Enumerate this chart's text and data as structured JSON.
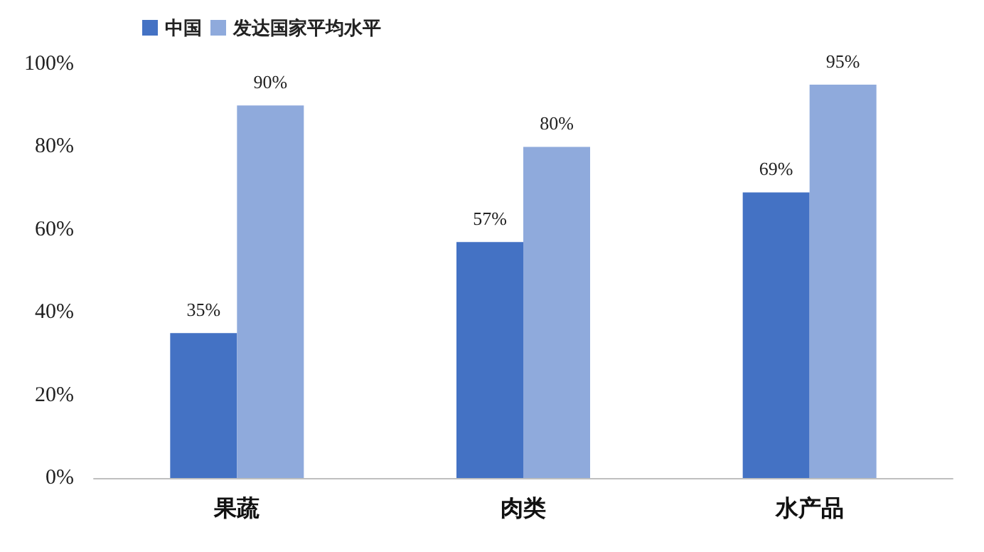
{
  "chart_data": {
    "type": "bar",
    "categories": [
      "果蔬",
      "肉类",
      "水产品"
    ],
    "series": [
      {
        "name": "中国",
        "color": "#4472c4",
        "values": [
          35,
          57,
          69
        ],
        "value_labels": [
          "35%",
          "57%",
          "69%"
        ]
      },
      {
        "name": "发达国家平均水平",
        "color": "#8faadc",
        "values": [
          90,
          80,
          95
        ],
        "value_labels": [
          "90%",
          "80%",
          "95%"
        ]
      }
    ],
    "ylim": [
      0,
      100
    ],
    "yticks": [
      {
        "value": 0,
        "label": "0%"
      },
      {
        "value": 20,
        "label": "20%"
      },
      {
        "value": 40,
        "label": "40%"
      },
      {
        "value": 60,
        "label": "60%"
      },
      {
        "value": 80,
        "label": "80%"
      },
      {
        "value": 100,
        "label": "100%"
      }
    ],
    "grid": false,
    "legend": "top left"
  }
}
